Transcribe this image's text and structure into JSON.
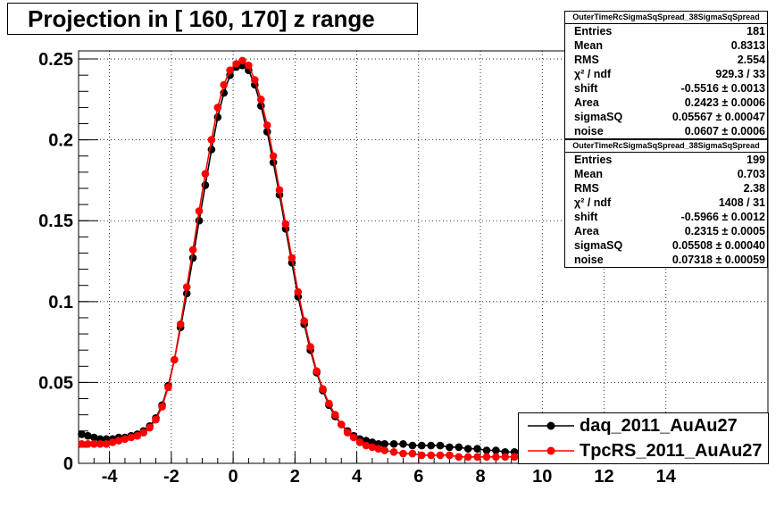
{
  "title": "Projection in [ 160, 170] z range",
  "colors": {
    "daq": "#000000",
    "tpcrs": "#ff0000"
  },
  "stats_boxes": [
    {
      "name": "OuterTimeRcSigmaSqSpread_38SigmaSqSpread",
      "rows": [
        {
          "label": "Entries",
          "value": "181"
        },
        {
          "label": "Mean",
          "value": "0.8313"
        },
        {
          "label": "RMS",
          "value": "2.554"
        },
        {
          "label": "χ² / ndf",
          "value": "929.3 / 33"
        },
        {
          "label": "shift",
          "value": "-0.5516 ± 0.0013"
        },
        {
          "label": "Area",
          "value": "0.2423 ± 0.0006"
        },
        {
          "label": "sigmaSQ",
          "value": "0.05567 ± 0.00047"
        },
        {
          "label": "noise",
          "value": "0.0607 ± 0.0006"
        }
      ]
    },
    {
      "name": "OuterTimeRcSigmaSqSpread_38SigmaSqSpread",
      "rows": [
        {
          "label": "Entries",
          "value": "199"
        },
        {
          "label": "Mean",
          "value": "0.703"
        },
        {
          "label": "RMS",
          "value": "2.38"
        },
        {
          "label": "χ² / ndf",
          "value": "1408 / 31"
        },
        {
          "label": "shift",
          "value": "-0.5966 ± 0.0012"
        },
        {
          "label": "Area",
          "value": "0.2315 ± 0.0005"
        },
        {
          "label": "sigmaSQ",
          "value": "0.05508 ± 0.00040"
        },
        {
          "label": "noise",
          "value": "0.07318 ± 0.00059"
        }
      ]
    }
  ],
  "legend": [
    {
      "label": "daq_2011_AuAu27",
      "color": "#000000"
    },
    {
      "label": "TpcRS_2011_AuAu27",
      "color": "#ff0000"
    }
  ],
  "chart_data": {
    "type": "scatter",
    "title": "Projection in [ 160, 170] z range",
    "xlim": [
      -5,
      17.3
    ],
    "ylim": [
      0,
      0.255
    ],
    "grid": true,
    "legend_position": "bottom-right",
    "x_ticks": [
      -4,
      -2,
      0,
      2,
      4,
      6,
      8,
      10,
      12,
      14
    ],
    "y_ticks": [
      0,
      0.05,
      0.1,
      0.15,
      0.2,
      0.25
    ],
    "x_tick_labels": [
      "-4",
      "-2",
      "0",
      "2",
      "4",
      "6",
      "8",
      "10",
      "12",
      "14"
    ],
    "y_tick_labels": [
      "0",
      "0.05",
      "0.1",
      "0.15",
      "0.2",
      "0.25"
    ],
    "series": [
      {
        "name": "daq_2011_AuAu27",
        "color": "#000000",
        "x": [
          -4.9,
          -4.7,
          -4.5,
          -4.3,
          -4.1,
          -3.9,
          -3.7,
          -3.5,
          -3.3,
          -3.1,
          -2.9,
          -2.7,
          -2.5,
          -2.3,
          -2.1,
          -1.9,
          -1.7,
          -1.5,
          -1.3,
          -1.1,
          -0.9,
          -0.7,
          -0.5,
          -0.3,
          -0.1,
          0.1,
          0.3,
          0.5,
          0.7,
          0.9,
          1.1,
          1.3,
          1.5,
          1.7,
          1.9,
          2.1,
          2.3,
          2.5,
          2.7,
          2.9,
          3.1,
          3.3,
          3.5,
          3.7,
          3.9,
          4.1,
          4.3,
          4.5,
          4.7,
          4.9,
          5.2,
          5.5,
          5.8,
          6.1,
          6.4,
          6.7,
          7.0,
          7.3,
          7.6,
          7.9,
          8.2,
          8.5,
          8.8,
          9.1
        ],
        "y": [
          0.018,
          0.017,
          0.016,
          0.015,
          0.015,
          0.015,
          0.016,
          0.016,
          0.017,
          0.018,
          0.02,
          0.023,
          0.028,
          0.036,
          0.048,
          0.064,
          0.084,
          0.105,
          0.127,
          0.15,
          0.172,
          0.194,
          0.214,
          0.229,
          0.24,
          0.245,
          0.246,
          0.243,
          0.234,
          0.221,
          0.205,
          0.186,
          0.166,
          0.145,
          0.124,
          0.103,
          0.086,
          0.07,
          0.056,
          0.045,
          0.036,
          0.029,
          0.024,
          0.02,
          0.017,
          0.015,
          0.014,
          0.013,
          0.012,
          0.012,
          0.012,
          0.012,
          0.011,
          0.011,
          0.011,
          0.011,
          0.01,
          0.01,
          0.009,
          0.009,
          0.008,
          0.008,
          0.007,
          0.007
        ]
      },
      {
        "name": "TpcRS_2011_AuAu27",
        "color": "#ff0000",
        "x": [
          -4.9,
          -4.7,
          -4.5,
          -4.3,
          -4.1,
          -3.9,
          -3.7,
          -3.5,
          -3.3,
          -3.1,
          -2.9,
          -2.7,
          -2.5,
          -2.3,
          -2.1,
          -1.9,
          -1.7,
          -1.5,
          -1.3,
          -1.1,
          -0.9,
          -0.7,
          -0.5,
          -0.3,
          -0.1,
          0.1,
          0.3,
          0.5,
          0.7,
          0.9,
          1.1,
          1.3,
          1.5,
          1.7,
          1.9,
          2.1,
          2.3,
          2.5,
          2.7,
          2.9,
          3.1,
          3.3,
          3.5,
          3.7,
          3.9,
          4.1,
          4.3,
          4.5,
          4.7,
          4.9,
          5.2,
          5.5,
          5.8,
          6.1,
          6.4,
          6.7,
          7.0,
          7.3,
          7.6,
          7.9,
          8.2,
          8.5,
          8.8,
          9.1
        ],
        "y": [
          0.012,
          0.012,
          0.012,
          0.012,
          0.012,
          0.013,
          0.014,
          0.015,
          0.016,
          0.017,
          0.019,
          0.022,
          0.027,
          0.035,
          0.047,
          0.064,
          0.086,
          0.109,
          0.132,
          0.156,
          0.179,
          0.2,
          0.22,
          0.234,
          0.243,
          0.247,
          0.249,
          0.246,
          0.237,
          0.225,
          0.209,
          0.19,
          0.169,
          0.148,
          0.127,
          0.106,
          0.088,
          0.072,
          0.057,
          0.046,
          0.037,
          0.03,
          0.024,
          0.019,
          0.016,
          0.013,
          0.011,
          0.01,
          0.009,
          0.008,
          0.007,
          0.006,
          0.006,
          0.005,
          0.005,
          0.005,
          0.005,
          0.004,
          0.004,
          0.004,
          0.004,
          0.004,
          0.004,
          0.004
        ]
      }
    ]
  }
}
